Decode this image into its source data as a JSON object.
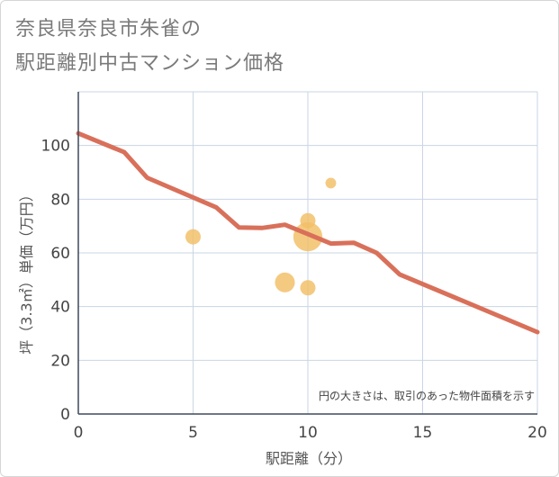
{
  "title": {
    "line1": "奈良県奈良市朱雀の",
    "line2": "駅距離別中古マンション価格"
  },
  "colors": {
    "line": "#d9705a",
    "bubble": "#f2be65",
    "grid": "#c9d6e3"
  },
  "chart_data": {
    "type": "line+scatter",
    "xlabel": "駅距離（分）",
    "ylabel": "坪（3.3㎡）単価（万円）",
    "xlim": [
      0,
      20
    ],
    "ylim": [
      0,
      120
    ],
    "xticks": [
      0,
      5,
      10,
      15,
      20
    ],
    "yticks": [
      0,
      20,
      40,
      60,
      80,
      100
    ],
    "note": "円の大きさは、取引のあった物件面積を示す",
    "line_series": {
      "name": "price_trend",
      "x": [
        0,
        2,
        3,
        6,
        7,
        8,
        9,
        10,
        11,
        12,
        13,
        14,
        20
      ],
      "y": [
        104.5,
        97.5,
        88,
        77,
        69.5,
        69.3,
        70.5,
        67,
        63.5,
        63.8,
        60,
        52,
        30.5
      ]
    },
    "scatter_series": {
      "name": "transactions",
      "points": [
        {
          "x": 5,
          "y": 66,
          "size": 1.0
        },
        {
          "x": 9,
          "y": 49,
          "size": 1.3
        },
        {
          "x": 10,
          "y": 72,
          "size": 1.0
        },
        {
          "x": 10,
          "y": 66,
          "size": 1.9
        },
        {
          "x": 10,
          "y": 47,
          "size": 1.0
        },
        {
          "x": 11,
          "y": 86,
          "size": 0.7
        }
      ]
    }
  }
}
